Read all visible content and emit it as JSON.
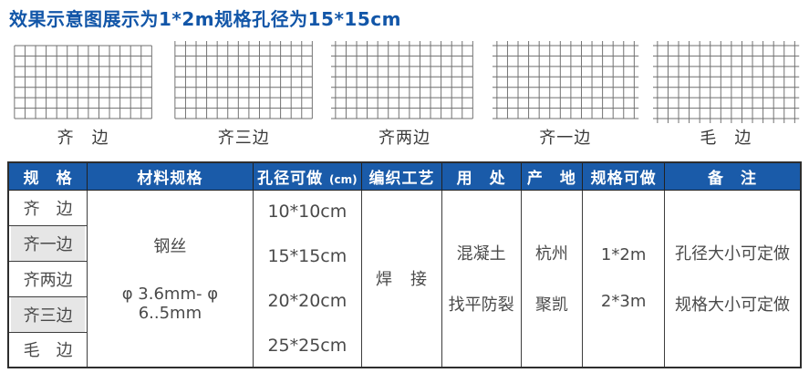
{
  "page": {
    "title": "效果示意图展示为1*2m规格孔径为15*15cm",
    "title_color": "#1256a8"
  },
  "meshes": [
    {
      "label": "齐　边",
      "raw_edges": []
    },
    {
      "label": "齐三边",
      "raw_edges": [
        "top"
      ]
    },
    {
      "label": "齐两边",
      "raw_edges": [
        "top",
        "left"
      ]
    },
    {
      "label": "齐一边",
      "raw_edges": [
        "top",
        "left",
        "right"
      ]
    },
    {
      "label": "毛　边",
      "raw_edges": [
        "top",
        "left",
        "right",
        "bottom"
      ]
    }
  ],
  "table": {
    "header_bg": "#1a5ba9",
    "columns": [
      {
        "label": "规　格"
      },
      {
        "label": "材料规格"
      },
      {
        "label": "孔径可做",
        "unit": "(cm)"
      },
      {
        "label": "编织工艺"
      },
      {
        "label": "用　处"
      },
      {
        "label": "产　地"
      },
      {
        "label": "规格可做"
      },
      {
        "label": "备　注"
      }
    ],
    "spec_rows": [
      {
        "label": "齐　边",
        "shaded": false
      },
      {
        "label": "齐一边",
        "shaded": true
      },
      {
        "label": "齐两边",
        "shaded": false
      },
      {
        "label": "齐三边",
        "shaded": true
      },
      {
        "label": "毛　边",
        "shaded": false
      }
    ],
    "material": {
      "line1": "钢丝",
      "line2": "φ 3.6mm- φ 6..5mm"
    },
    "hole_sizes": [
      "10*10cm",
      "15*15cm",
      "20*20cm",
      "25*25cm"
    ],
    "process": "焊　接",
    "usage": [
      "混凝土",
      "找平防裂"
    ],
    "origin": [
      "杭州",
      "聚凯"
    ],
    "sizes_available": [
      "1*2m",
      "2*3m"
    ],
    "remarks": [
      "孔径大小可定做",
      "规格大小可定做"
    ]
  }
}
